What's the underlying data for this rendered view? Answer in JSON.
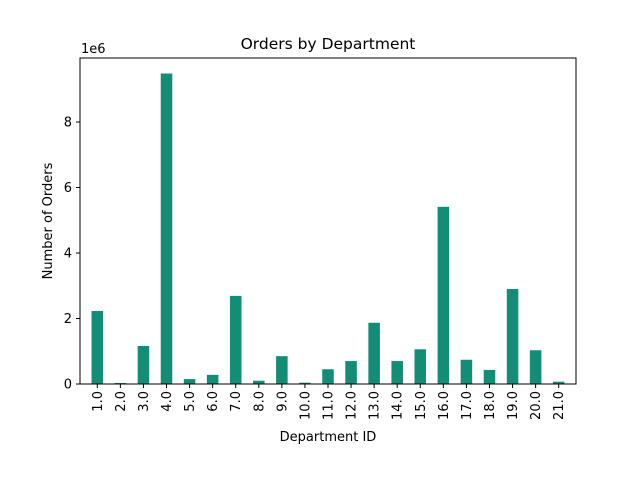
{
  "chart_data": {
    "type": "bar",
    "title": "Orders by Department",
    "xlabel": "Department ID",
    "ylabel": "Number of Orders",
    "offset_label": "1e6",
    "categories": [
      "1.0",
      "2.0",
      "3.0",
      "4.0",
      "5.0",
      "6.0",
      "7.0",
      "8.0",
      "9.0",
      "10.0",
      "11.0",
      "12.0",
      "13.0",
      "14.0",
      "15.0",
      "16.0",
      "17.0",
      "18.0",
      "19.0",
      "20.0",
      "21.0"
    ],
    "values": [
      2230000,
      30000,
      1160000,
      9480000,
      150000,
      280000,
      2690000,
      100000,
      850000,
      40000,
      450000,
      700000,
      1870000,
      700000,
      1060000,
      5410000,
      740000,
      430000,
      2900000,
      1030000,
      70000
    ],
    "yticks": [
      0,
      2000000,
      4000000,
      6000000,
      8000000
    ],
    "ytick_labels": [
      "0",
      "2",
      "4",
      "6",
      "8"
    ],
    "ylim": [
      0,
      9954000
    ],
    "bar_color": "#138d75",
    "grid": false,
    "legend": false
  }
}
